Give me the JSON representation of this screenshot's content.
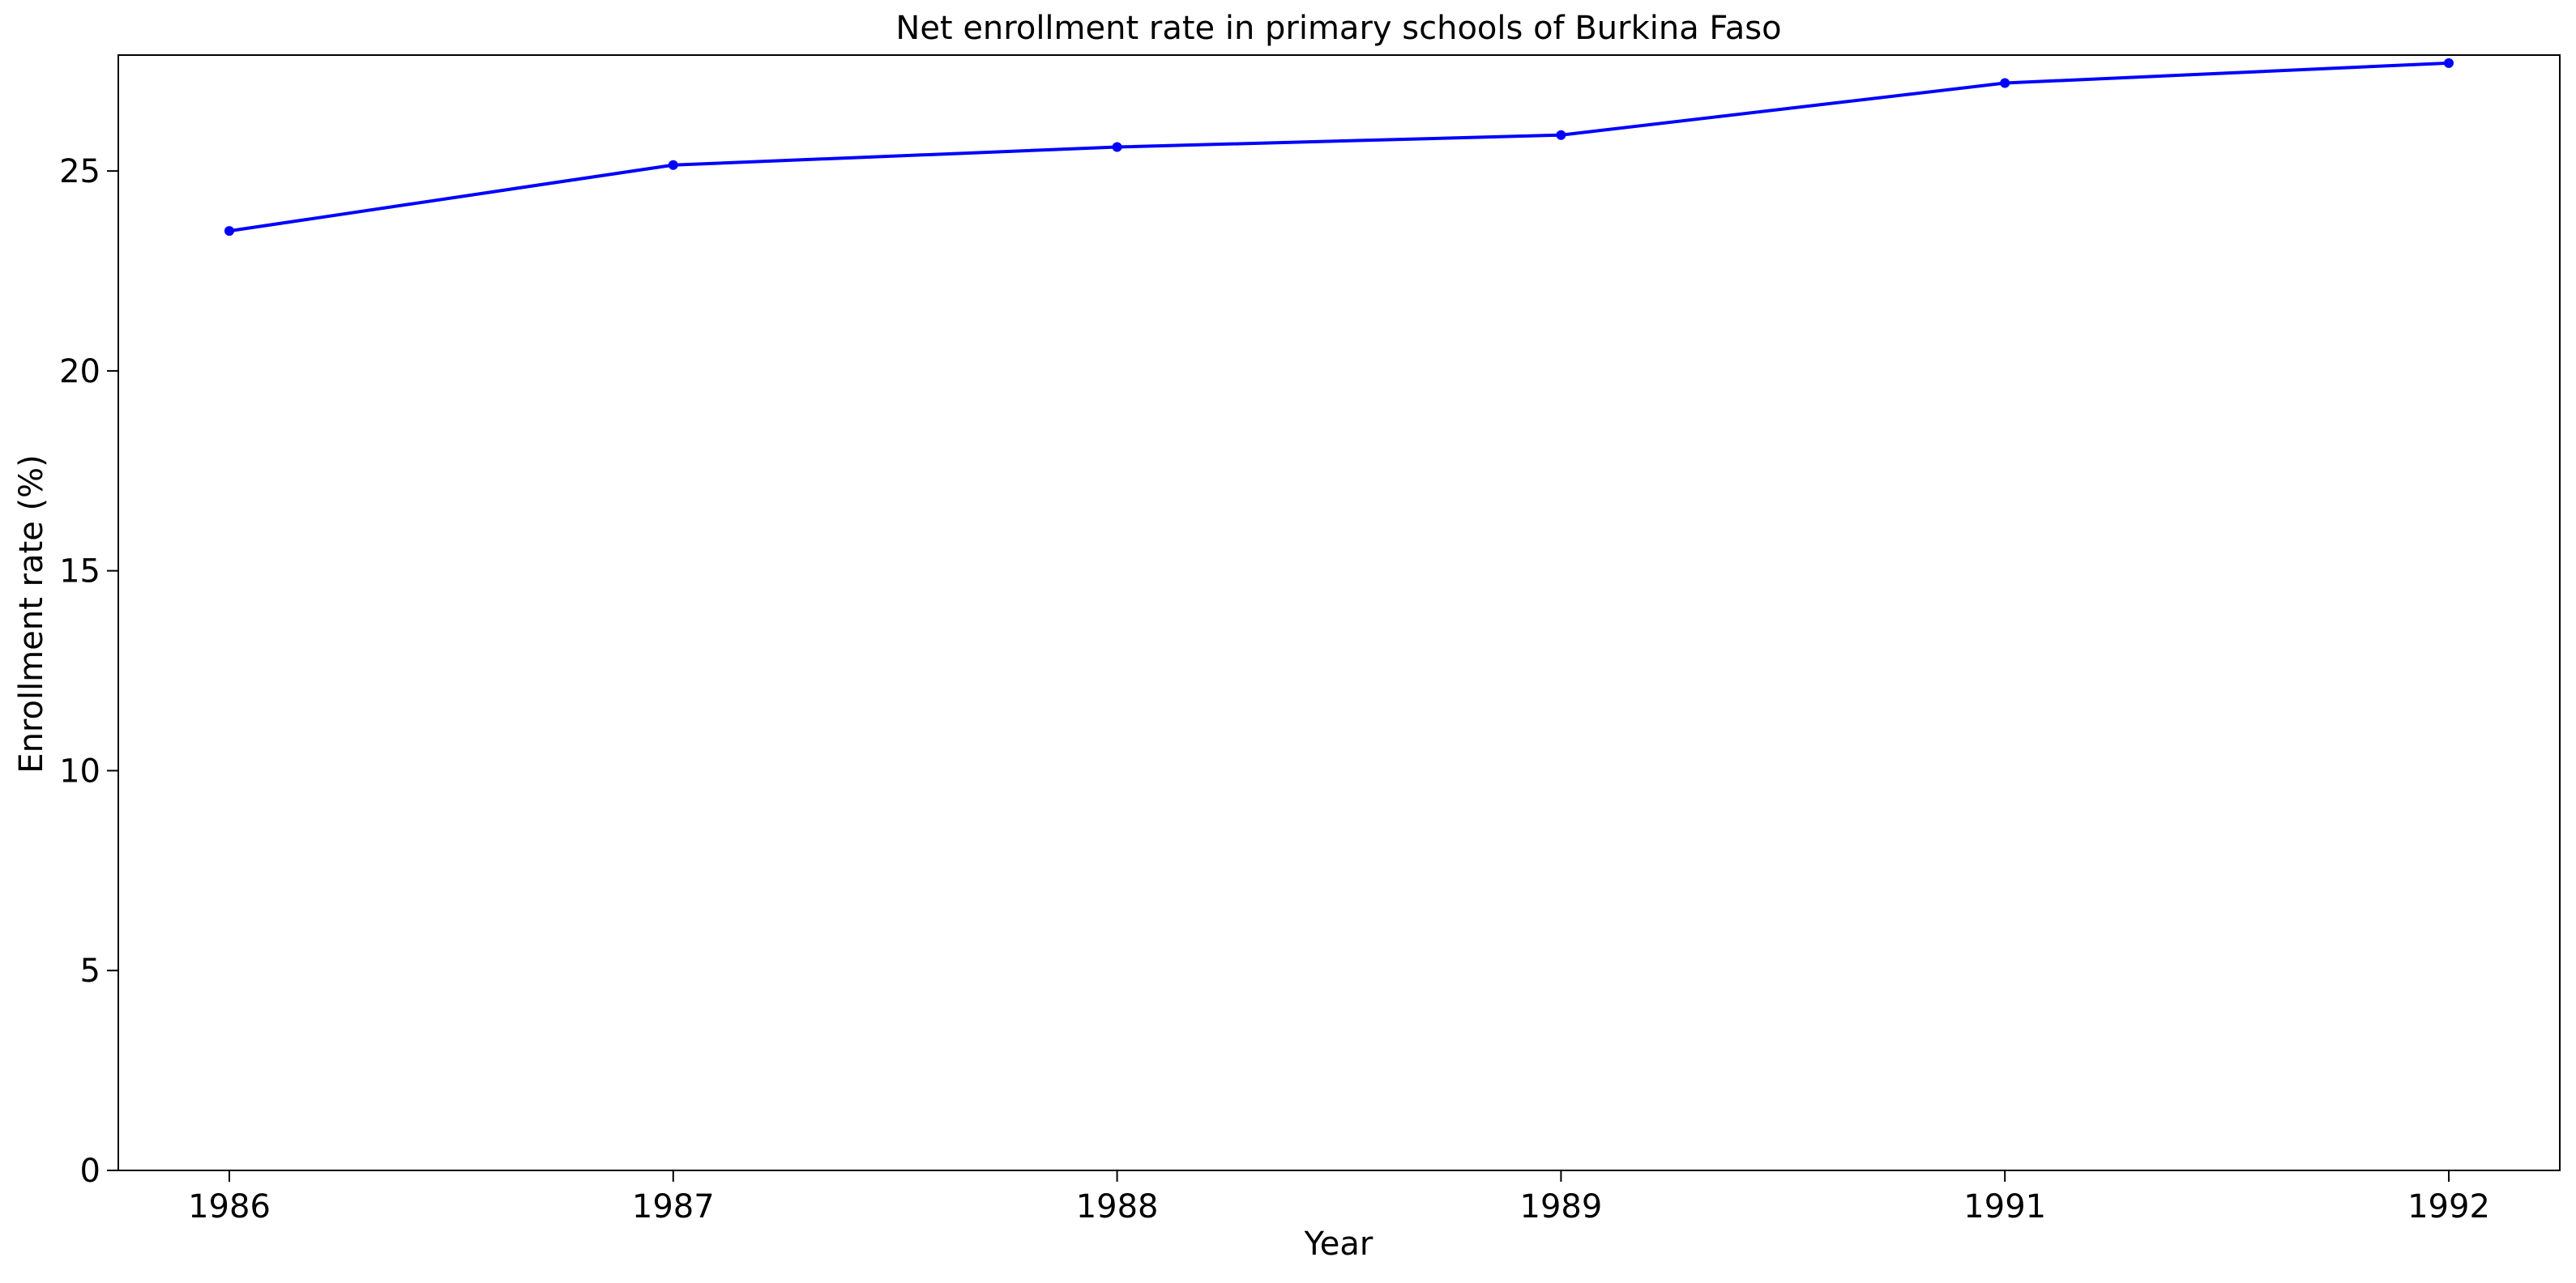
{
  "chart_data": {
    "type": "line",
    "title": "Net enrollment rate in primary schools of Burkina Faso",
    "xlabel": "Year",
    "ylabel": "Enrollment rate (%)",
    "categories": [
      "1986",
      "1987",
      "1988",
      "1989",
      "1991",
      "1992"
    ],
    "series": [
      {
        "values": [
          23.5,
          25.15,
          25.6,
          25.9,
          27.2,
          27.7
        ],
        "color": "#0000ff"
      }
    ],
    "ylim": [
      0,
      27.9
    ],
    "yticks": [
      0,
      5,
      10,
      15,
      20,
      25
    ],
    "grid": false,
    "legend": "none"
  }
}
